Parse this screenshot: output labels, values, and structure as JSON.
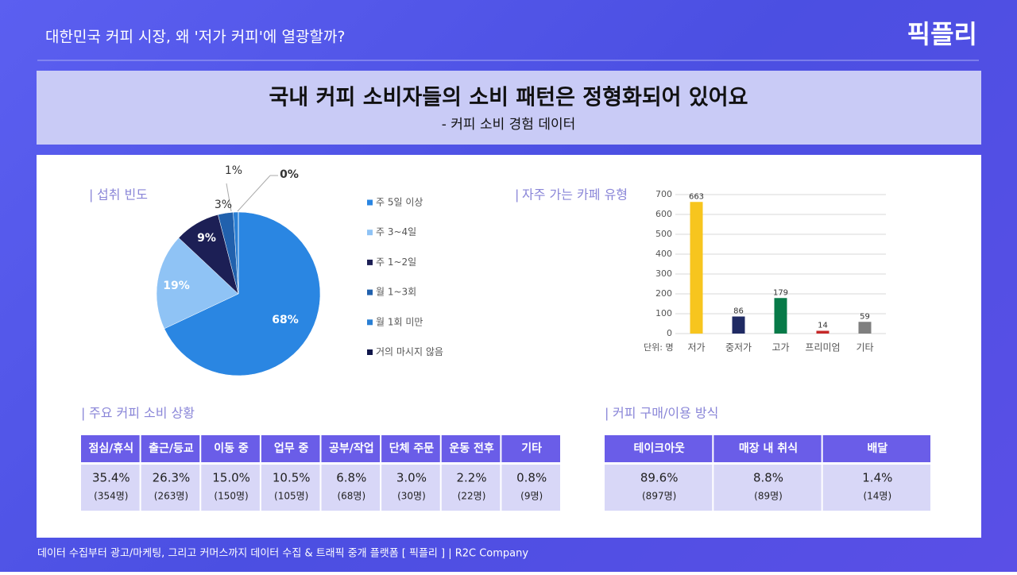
{
  "header": {
    "title": "대한민국 커피 시장, 왜 '저가 커피'에 열광할까?",
    "logo": "픽플리"
  },
  "banner": {
    "title": "국내 커피 소비자들의 소비 패턴은 정형화되어 있어요",
    "subtitle": "- 커피 소비 경험 데이터"
  },
  "chart_data": [
    {
      "type": "pie",
      "title": "섭취 빈도",
      "categories": [
        "주 5일 이상",
        "주 3~4일",
        "주 1~2일",
        "월 1~3회",
        "월 1회 미만",
        "거의 마시지 않음"
      ],
      "values": [
        68,
        19,
        9,
        3,
        1,
        0
      ],
      "value_labels": [
        "68%",
        "19%",
        "9%",
        "3%",
        "1%",
        "0%"
      ],
      "colors": [
        "#2a86e2",
        "#8fc3f5",
        "#1c1f55",
        "#2161ad",
        "#2a7fd4",
        "#10164a"
      ]
    },
    {
      "type": "bar",
      "title": "자주 가는 카페 유형",
      "unit": "단위: 명",
      "categories": [
        "저가",
        "중저가",
        "고가",
        "프리미엄",
        "기타"
      ],
      "values": [
        663,
        86,
        179,
        14,
        59
      ],
      "colors": [
        "#f7c51e",
        "#1f2a63",
        "#077a48",
        "#c62828",
        "#7f7f7f"
      ],
      "ylim": [
        0,
        700
      ],
      "yticks": [
        0,
        100,
        200,
        300,
        400,
        500,
        600,
        700
      ],
      "grid": true
    }
  ],
  "tables": [
    {
      "title": "주요 커피 소비 상황",
      "headers": [
        "점심/휴식",
        "출근/등교",
        "이동 중",
        "업무 중",
        "공부/작업",
        "단체 주문",
        "운동 전후",
        "기타"
      ],
      "rows": [
        [
          "35.4%",
          "26.3%",
          "15.0%",
          "10.5%",
          "6.8%",
          "3.0%",
          "2.2%",
          "0.8%"
        ],
        [
          "(354명)",
          "(263명)",
          "(150명)",
          "(105명)",
          "(68명)",
          "(30명)",
          "(22명)",
          "(9명)"
        ]
      ]
    },
    {
      "title": "커피 구매/이용 방식",
      "headers": [
        "테이크아웃",
        "매장 내 취식",
        "배달"
      ],
      "rows": [
        [
          "89.6%",
          "8.8%",
          "1.4%"
        ],
        [
          "(897명)",
          "(89명)",
          "(14명)"
        ]
      ]
    }
  ],
  "footer": {
    "text": "데이터 수집부터 광고/마케팅, 그리고 커머스까지 데이터 수집 & 트래픽 중개 플랫폼 [ 픽플리 ]  |  R2C Company"
  }
}
